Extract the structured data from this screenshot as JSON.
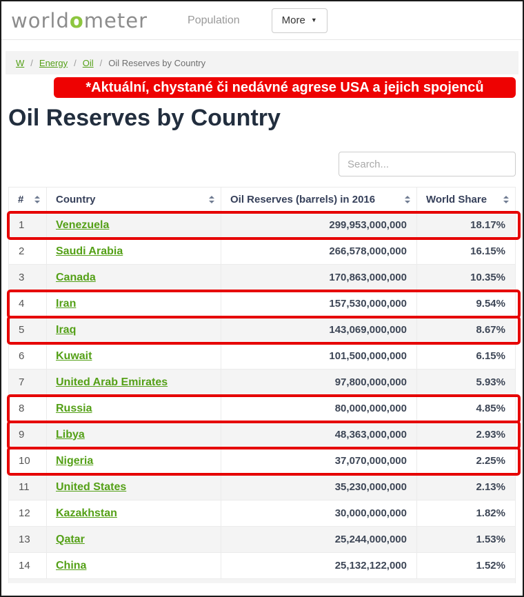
{
  "header": {
    "logo": {
      "prefix": "world",
      "accent": "o",
      "suffix": "meter"
    },
    "population_label": "Population",
    "more_label": "More",
    "more_caret": "▼"
  },
  "breadcrumb": {
    "separator": "/",
    "items": [
      {
        "label": "W",
        "link": true
      },
      {
        "label": "Energy",
        "link": true
      },
      {
        "label": "Oil",
        "link": true
      },
      {
        "label": "Oil Reserves by Country",
        "link": false
      }
    ]
  },
  "annotation": {
    "text": "*Aktuální, chystané či nedávné agrese USA a jejich spojenců"
  },
  "page": {
    "title": "Oil Reserves by Country"
  },
  "search": {
    "placeholder": "Search..."
  },
  "table": {
    "columns": [
      {
        "label": "#",
        "sortable": true
      },
      {
        "label": "Country",
        "sortable": true
      },
      {
        "label": "Oil Reserves (barrels) in 2016",
        "sortable": true
      },
      {
        "label": "World Share",
        "sortable": true
      }
    ],
    "rows": [
      {
        "rank": "1",
        "country": "Venezuela",
        "reserves": "299,953,000,000",
        "share": "18.17%",
        "highlighted": true
      },
      {
        "rank": "2",
        "country": "Saudi Arabia",
        "reserves": "266,578,000,000",
        "share": "16.15%",
        "highlighted": false
      },
      {
        "rank": "3",
        "country": "Canada",
        "reserves": "170,863,000,000",
        "share": "10.35%",
        "highlighted": false
      },
      {
        "rank": "4",
        "country": "Iran",
        "reserves": "157,530,000,000",
        "share": "9.54%",
        "highlighted": true
      },
      {
        "rank": "5",
        "country": "Iraq",
        "reserves": "143,069,000,000",
        "share": "8.67%",
        "highlighted": true
      },
      {
        "rank": "6",
        "country": "Kuwait",
        "reserves": "101,500,000,000",
        "share": "6.15%",
        "highlighted": false
      },
      {
        "rank": "7",
        "country": "United Arab Emirates",
        "reserves": "97,800,000,000",
        "share": "5.93%",
        "highlighted": false
      },
      {
        "rank": "8",
        "country": "Russia",
        "reserves": "80,000,000,000",
        "share": "4.85%",
        "highlighted": true
      },
      {
        "rank": "9",
        "country": "Libya",
        "reserves": "48,363,000,000",
        "share": "2.93%",
        "highlighted": true
      },
      {
        "rank": "10",
        "country": "Nigeria",
        "reserves": "37,070,000,000",
        "share": "2.25%",
        "highlighted": true
      },
      {
        "rank": "11",
        "country": "United States",
        "reserves": "35,230,000,000",
        "share": "2.13%",
        "highlighted": false
      },
      {
        "rank": "12",
        "country": "Kazakhstan",
        "reserves": "30,000,000,000",
        "share": "1.82%",
        "highlighted": false
      },
      {
        "rank": "13",
        "country": "Qatar",
        "reserves": "25,244,000,000",
        "share": "1.53%",
        "highlighted": false
      },
      {
        "rank": "14",
        "country": "China",
        "reserves": "25,132,122,000",
        "share": "1.52%",
        "highlighted": false
      }
    ]
  },
  "colors": {
    "accent_green": "#8dc63f",
    "link_green": "#54a017",
    "highlight_red": "#e60000",
    "banner_red": "#ee0202"
  }
}
